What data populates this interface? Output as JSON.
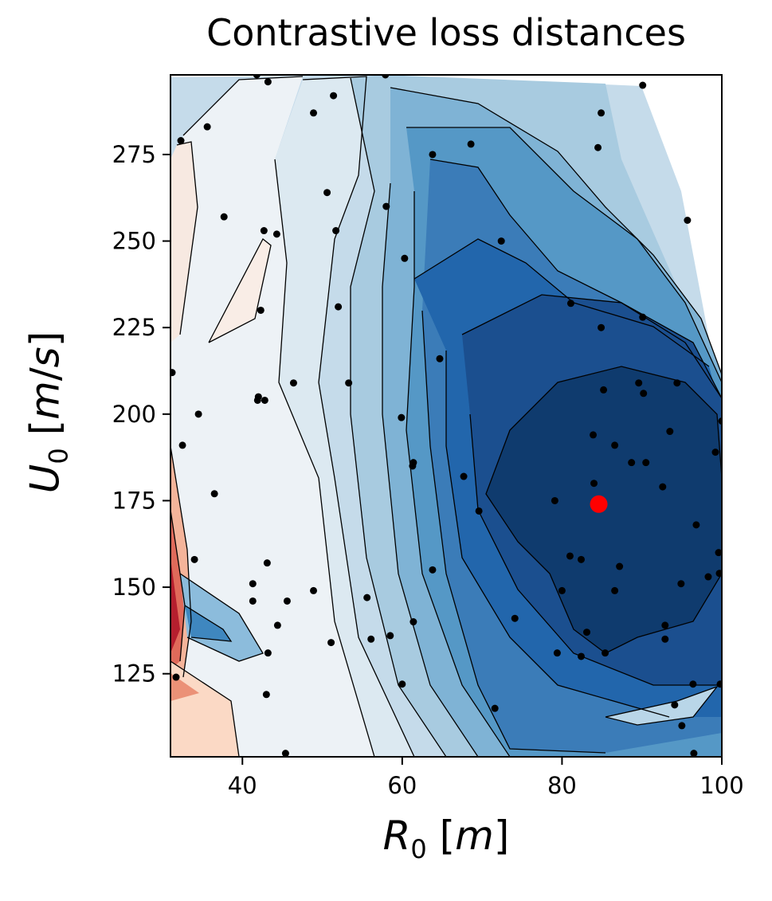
{
  "chart_data": {
    "type": "contour",
    "title": "Contrastive loss distances",
    "xlabel": "R_0 [m]",
    "ylabel": "U_0 [m/s]",
    "xlim": [
      31,
      100
    ],
    "ylim": [
      101,
      298
    ],
    "xticks": [
      40,
      60,
      80,
      100
    ],
    "yticks": [
      125,
      150,
      175,
      200,
      225,
      250,
      275
    ],
    "colormap": "RdBu",
    "levels": 21,
    "min_marker": {
      "x": 84.6,
      "y": 174,
      "color": "#ff0000"
    },
    "points": [
      {
        "x": 31.2,
        "y": 212
      },
      {
        "x": 32.3,
        "y": 279
      },
      {
        "x": 31.7,
        "y": 124
      },
      {
        "x": 32.5,
        "y": 191
      },
      {
        "x": 34.0,
        "y": 158
      },
      {
        "x": 34.5,
        "y": 200
      },
      {
        "x": 35.6,
        "y": 283
      },
      {
        "x": 36.5,
        "y": 177
      },
      {
        "x": 37.7,
        "y": 257
      },
      {
        "x": 41.3,
        "y": 151
      },
      {
        "x": 41.3,
        "y": 146
      },
      {
        "x": 41.8,
        "y": 298
      },
      {
        "x": 42.0,
        "y": 205
      },
      {
        "x": 41.9,
        "y": 204
      },
      {
        "x": 42.8,
        "y": 204
      },
      {
        "x": 42.3,
        "y": 230
      },
      {
        "x": 42.7,
        "y": 253
      },
      {
        "x": 43.2,
        "y": 296
      },
      {
        "x": 43.1,
        "y": 157
      },
      {
        "x": 43.2,
        "y": 131
      },
      {
        "x": 43.0,
        "y": 119
      },
      {
        "x": 44.3,
        "y": 252
      },
      {
        "x": 44.4,
        "y": 139
      },
      {
        "x": 45.6,
        "y": 146
      },
      {
        "x": 45.4,
        "y": 102
      },
      {
        "x": 46.4,
        "y": 209
      },
      {
        "x": 48.9,
        "y": 287
      },
      {
        "x": 48.9,
        "y": 149
      },
      {
        "x": 50.6,
        "y": 264
      },
      {
        "x": 51.1,
        "y": 134
      },
      {
        "x": 51.4,
        "y": 292
      },
      {
        "x": 51.7,
        "y": 253
      },
      {
        "x": 52.0,
        "y": 231
      },
      {
        "x": 53.3,
        "y": 209
      },
      {
        "x": 55.6,
        "y": 147
      },
      {
        "x": 56.1,
        "y": 135
      },
      {
        "x": 58.0,
        "y": 260
      },
      {
        "x": 57.9,
        "y": 298
      },
      {
        "x": 58.5,
        "y": 136
      },
      {
        "x": 59.9,
        "y": 199
      },
      {
        "x": 60.0,
        "y": 122
      },
      {
        "x": 60.3,
        "y": 245
      },
      {
        "x": 61.4,
        "y": 186
      },
      {
        "x": 61.3,
        "y": 185
      },
      {
        "x": 61.4,
        "y": 140
      },
      {
        "x": 63.8,
        "y": 275
      },
      {
        "x": 63.8,
        "y": 155
      },
      {
        "x": 64.7,
        "y": 216
      },
      {
        "x": 67.7,
        "y": 182
      },
      {
        "x": 68.6,
        "y": 278
      },
      {
        "x": 69.6,
        "y": 172
      },
      {
        "x": 71.6,
        "y": 115
      },
      {
        "x": 72.4,
        "y": 250
      },
      {
        "x": 74.1,
        "y": 141
      },
      {
        "x": 79.1,
        "y": 175
      },
      {
        "x": 79.4,
        "y": 131
      },
      {
        "x": 80.0,
        "y": 149
      },
      {
        "x": 81.0,
        "y": 159
      },
      {
        "x": 81.1,
        "y": 232
      },
      {
        "x": 82.4,
        "y": 158
      },
      {
        "x": 82.4,
        "y": 130
      },
      {
        "x": 83.1,
        "y": 137
      },
      {
        "x": 83.9,
        "y": 194
      },
      {
        "x": 84.0,
        "y": 180
      },
      {
        "x": 84.5,
        "y": 277
      },
      {
        "x": 84.9,
        "y": 287
      },
      {
        "x": 84.9,
        "y": 225
      },
      {
        "x": 85.2,
        "y": 207
      },
      {
        "x": 85.4,
        "y": 131
      },
      {
        "x": 86.6,
        "y": 191
      },
      {
        "x": 86.6,
        "y": 149
      },
      {
        "x": 87.2,
        "y": 156
      },
      {
        "x": 88.7,
        "y": 186
      },
      {
        "x": 89.6,
        "y": 209
      },
      {
        "x": 90.1,
        "y": 295
      },
      {
        "x": 90.1,
        "y": 228
      },
      {
        "x": 90.2,
        "y": 206
      },
      {
        "x": 90.5,
        "y": 186
      },
      {
        "x": 92.6,
        "y": 179
      },
      {
        "x": 92.9,
        "y": 139
      },
      {
        "x": 92.9,
        "y": 135
      },
      {
        "x": 93.5,
        "y": 195
      },
      {
        "x": 94.1,
        "y": 116
      },
      {
        "x": 94.4,
        "y": 209
      },
      {
        "x": 94.9,
        "y": 151
      },
      {
        "x": 95.0,
        "y": 110
      },
      {
        "x": 95.7,
        "y": 256
      },
      {
        "x": 96.4,
        "y": 122
      },
      {
        "x": 96.5,
        "y": 102
      },
      {
        "x": 96.8,
        "y": 168
      },
      {
        "x": 98.3,
        "y": 153
      },
      {
        "x": 99.2,
        "y": 189
      },
      {
        "x": 99.6,
        "y": 160
      },
      {
        "x": 99.7,
        "y": 154
      },
      {
        "x": 99.8,
        "y": 122
      },
      {
        "x": 100.0,
        "y": 198
      }
    ]
  }
}
